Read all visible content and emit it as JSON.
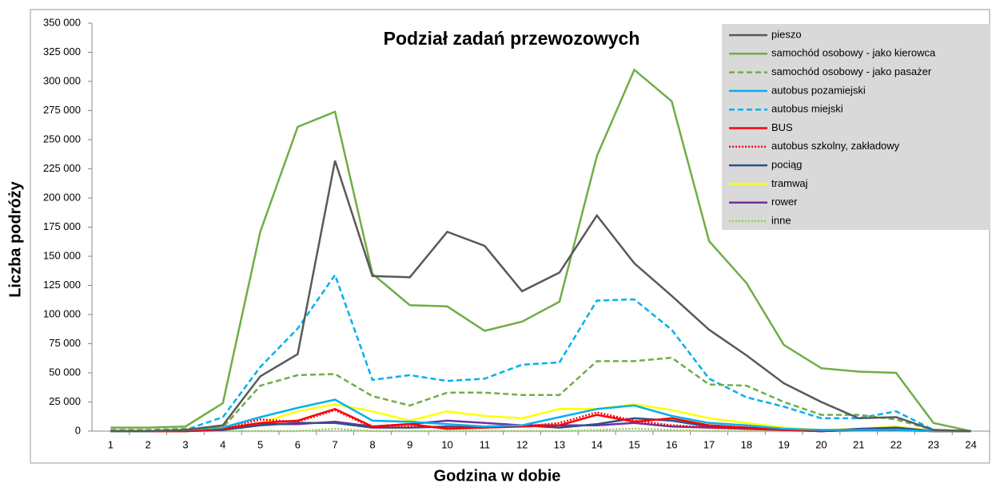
{
  "chart_data": {
    "type": "line",
    "title": "Podział zadań przewozowych",
    "xlabel": "Godzina w dobie",
    "ylabel": "Liczba podróży",
    "categories": [
      "1",
      "2",
      "3",
      "4",
      "5",
      "6",
      "7",
      "8",
      "9",
      "10",
      "11",
      "12",
      "13",
      "14",
      "15",
      "16",
      "17",
      "18",
      "19",
      "20",
      "21",
      "22",
      "23",
      "24"
    ],
    "ylim": [
      0,
      350000
    ],
    "yticks": [
      0,
      {
        "value": 25000,
        "label": "25 000"
      },
      {
        "value": 50000,
        "label": "50 000"
      },
      {
        "value": 75000,
        "label": "75 000"
      },
      {
        "value": 100000,
        "label": "100 000"
      },
      {
        "value": 125000,
        "label": "125 000"
      },
      {
        "value": 150000,
        "label": "150 000"
      },
      {
        "value": 175000,
        "label": "175 000"
      },
      {
        "value": 200000,
        "label": "200 000"
      },
      {
        "value": 225000,
        "label": "225 000"
      },
      {
        "value": 250000,
        "label": "250 000"
      },
      {
        "value": 275000,
        "label": "275 000"
      },
      {
        "value": 300000,
        "label": "300 000"
      },
      {
        "value": 325000,
        "label": "325 000"
      },
      {
        "value": 350000,
        "label": "350 000"
      }
    ],
    "grid": false,
    "legend": "top-right",
    "series": [
      {
        "name": "pieszo",
        "color": "#595959",
        "style": "solid",
        "values": [
          0,
          0,
          1000,
          5000,
          47000,
          66000,
          232000,
          133000,
          132000,
          171000,
          159000,
          120000,
          136000,
          185000,
          144000,
          116000,
          87000,
          65000,
          41000,
          25000,
          11000,
          12000,
          1000,
          0
        ]
      },
      {
        "name": "samochód osobowy - jako kierowca",
        "color": "#70ad47",
        "style": "solid",
        "values": [
          3000,
          3000,
          4000,
          24000,
          171000,
          261000,
          274000,
          135000,
          108000,
          107000,
          86000,
          94000,
          111000,
          236000,
          310000,
          283000,
          163000,
          127000,
          74000,
          54000,
          51000,
          50000,
          7000,
          0
        ]
      },
      {
        "name": "samochód osobowy - jako pasażer",
        "color": "#70ad47",
        "style": "dashed",
        "values": [
          1000,
          1000,
          2000,
          3000,
          39000,
          48000,
          49000,
          30000,
          22000,
          33000,
          33000,
          31000,
          31000,
          60000,
          60000,
          63000,
          40000,
          39000,
          25000,
          14000,
          14000,
          10000,
          1000,
          0
        ]
      },
      {
        "name": "autobus pozamiejski",
        "color": "#00b0f0",
        "style": "solid",
        "values": [
          0,
          0,
          1000,
          3000,
          12000,
          20000,
          27000,
          9000,
          8000,
          6000,
          4000,
          5000,
          12000,
          19000,
          22000,
          13000,
          7000,
          5000,
          2000,
          1000,
          1000,
          1000,
          0,
          0
        ]
      },
      {
        "name": "autobus miejski",
        "color": "#00b0f0",
        "style": "dashed",
        "values": [
          0,
          0,
          1000,
          12000,
          55000,
          88000,
          134000,
          44000,
          48000,
          43000,
          45000,
          57000,
          59000,
          112000,
          113000,
          87000,
          45000,
          29000,
          21000,
          11000,
          11000,
          17000,
          1000,
          0
        ]
      },
      {
        "name": "BUS",
        "color": "#ff0000",
        "style": "solid",
        "values": [
          0,
          0,
          0,
          2000,
          7000,
          9000,
          19000,
          4000,
          6000,
          2000,
          3000,
          4000,
          5000,
          14000,
          8000,
          11000,
          5000,
          3000,
          1000,
          0,
          1000,
          1000,
          0,
          0
        ]
      },
      {
        "name": "autobus szkolny, zakładowy",
        "color": "#ff0000",
        "style": "dotted",
        "values": [
          0,
          0,
          0,
          2000,
          10000,
          8000,
          18000,
          3000,
          4000,
          3000,
          4000,
          4000,
          7000,
          16000,
          9000,
          5000,
          3000,
          2000,
          1000,
          0,
          1000,
          1000,
          0,
          0
        ]
      },
      {
        "name": "pociąg",
        "color": "#2f4f8f",
        "style": "solid",
        "values": [
          0,
          0,
          0,
          1000,
          5000,
          7000,
          7000,
          3000,
          3000,
          4000,
          3000,
          5000,
          3000,
          6000,
          11000,
          9000,
          4000,
          3000,
          1000,
          0,
          2000,
          3000,
          0,
          0
        ]
      },
      {
        "name": "tramwaj",
        "color": "#ffff00",
        "style": "solid",
        "values": [
          0,
          0,
          0,
          2000,
          7000,
          17000,
          23000,
          17000,
          9000,
          17000,
          13000,
          11000,
          19000,
          19000,
          23000,
          18000,
          11000,
          7000,
          3000,
          1000,
          2000,
          4000,
          0,
          0
        ]
      },
      {
        "name": "rower",
        "color": "#7030a0",
        "style": "solid",
        "values": [
          0,
          0,
          0,
          1000,
          6000,
          6000,
          8000,
          4000,
          6000,
          9000,
          7000,
          5000,
          5000,
          5000,
          7000,
          4000,
          3000,
          2000,
          1000,
          0,
          1000,
          1000,
          0,
          0
        ]
      },
      {
        "name": "inne",
        "color": "#92d050",
        "style": "dotted",
        "values": [
          0,
          0,
          0,
          0,
          0,
          0,
          2000,
          0,
          0,
          0,
          0,
          0,
          0,
          1000,
          2000,
          1000,
          0,
          0,
          0,
          0,
          0,
          0,
          0,
          0
        ]
      }
    ]
  }
}
